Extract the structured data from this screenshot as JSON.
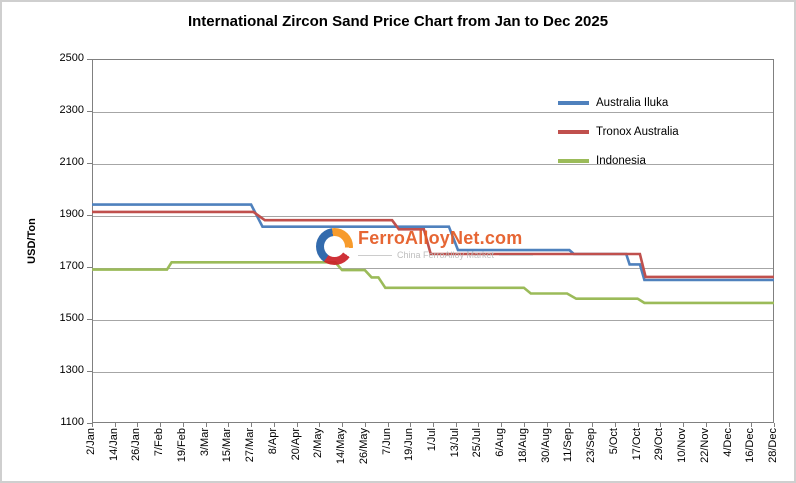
{
  "title": "International Zircon Sand Price Chart from Jan to Dec 2025",
  "watermark": {
    "brand": "FerroAlloyNet.com",
    "tagline": "China FerroAlloy Market"
  },
  "chart_data": {
    "type": "line",
    "title": "International Zircon Sand Price Chart from Jan to Dec 2025",
    "xlabel": "",
    "ylabel": "USD/Ton",
    "ylim": [
      1100,
      2500
    ],
    "ytick_interval": 200,
    "yticks": [
      1100,
      1300,
      1500,
      1700,
      1900,
      2100,
      2300,
      2500
    ],
    "grid": true,
    "legend_position": "inside-top-right",
    "x_tick_labels": [
      "2/Jan",
      "14/Jan",
      "26/Jan",
      "7/Feb",
      "19/Feb",
      "3/Mar",
      "15/Mar",
      "27/Mar",
      "8/Apr",
      "20/Apr",
      "2/May",
      "14/May",
      "26/May",
      "7/Jun",
      "19/Jun",
      "1/Jul",
      "13/Jul",
      "25/Jul",
      "6/Aug",
      "18/Aug",
      "30/Aug",
      "11/Sep",
      "23/Sep",
      "5/Oct",
      "17/Oct",
      "29/Oct",
      "10/Nov",
      "22/Nov",
      "4/Dec",
      "16/Dec",
      "28/Dec"
    ],
    "x_unit_note": "x values of points are in tick-index units (0 = 2/Jan, each tick = 12 days, 30 = 28/Dec)",
    "series": [
      {
        "name": "Australia Iluka",
        "color": "#4F81BD",
        "points": [
          [
            0,
            1940
          ],
          [
            7.0,
            1940
          ],
          [
            7.5,
            1855
          ],
          [
            15.7,
            1855
          ],
          [
            16.1,
            1765
          ],
          [
            21.0,
            1765
          ],
          [
            21.2,
            1750
          ],
          [
            23.5,
            1750
          ],
          [
            23.65,
            1710
          ],
          [
            24.1,
            1710
          ],
          [
            24.3,
            1650
          ],
          [
            30,
            1650
          ]
        ]
      },
      {
        "name": "Tronox Australia",
        "color": "#C0504D",
        "points": [
          [
            0,
            1912
          ],
          [
            7.1,
            1912
          ],
          [
            7.6,
            1880
          ],
          [
            13.2,
            1880
          ],
          [
            13.5,
            1845
          ],
          [
            14.6,
            1845
          ],
          [
            14.9,
            1750
          ],
          [
            24.1,
            1750
          ],
          [
            24.35,
            1662
          ],
          [
            30,
            1662
          ]
        ]
      },
      {
        "name": "Indonesia",
        "color": "#9BBB59",
        "points": [
          [
            0,
            1690
          ],
          [
            3.3,
            1690
          ],
          [
            3.5,
            1718
          ],
          [
            10.7,
            1718
          ],
          [
            11.0,
            1688
          ],
          [
            12.0,
            1688
          ],
          [
            12.3,
            1660
          ],
          [
            12.6,
            1660
          ],
          [
            12.9,
            1620
          ],
          [
            19.0,
            1620
          ],
          [
            19.3,
            1598
          ],
          [
            20.9,
            1598
          ],
          [
            21.3,
            1578
          ],
          [
            24.0,
            1578
          ],
          [
            24.3,
            1562
          ],
          [
            30,
            1562
          ]
        ]
      }
    ]
  }
}
